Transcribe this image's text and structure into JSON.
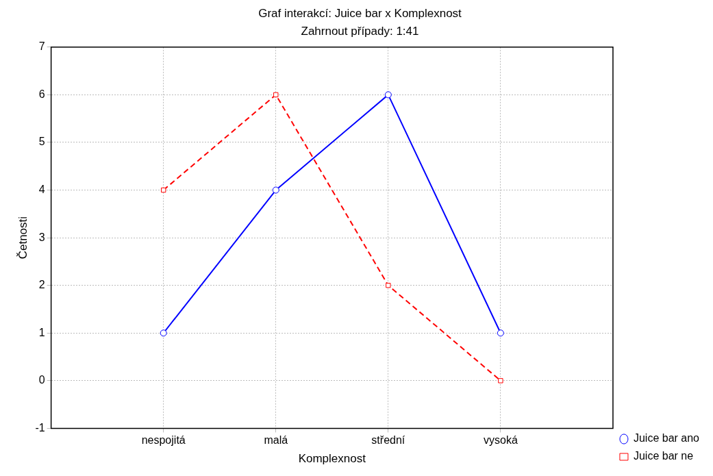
{
  "chart_data": {
    "type": "line",
    "title": "Graf interakcí: Juice bar x Komplexnost",
    "subtitle": "Zahrnout případy: 1:41",
    "xlabel": "Komplexnost",
    "ylabel": "Četnosti",
    "categories": [
      "nespojitá",
      "malá",
      "střední",
      "vysoká"
    ],
    "series": [
      {
        "name": "Juice bar ano",
        "color": "#0000ff",
        "values": [
          1,
          4,
          6,
          1
        ],
        "marker": "circle",
        "line_style": "solid"
      },
      {
        "name": "Juice bar ne",
        "color": "#ff0000",
        "values": [
          4,
          6,
          2,
          0
        ],
        "marker": "square",
        "line_style": "dashed"
      }
    ],
    "ylim": [
      -1,
      7
    ],
    "yticks": [
      -1,
      0,
      1,
      2,
      3,
      4,
      5,
      6,
      7
    ],
    "grid": true,
    "legend": "bottom right"
  }
}
